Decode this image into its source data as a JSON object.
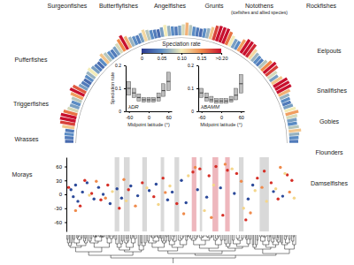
{
  "chart_data": [
    {
      "type": "tree",
      "annotations": [
        "Surgeonfishes",
        "Butterflyfishes",
        "Angelfishes",
        "Grunts",
        "Notothens",
        "(icefishes and allied species)",
        "Rockfishes",
        "Eelpouts",
        "Snailfishes",
        "Gobies",
        "Flounders",
        "Damselfishes",
        "Pufferfishes",
        "Triggerfishes",
        "Wrasses",
        "Morays"
      ],
      "tip_rates": [
        0.03,
        0.04,
        0.05,
        0.04,
        0.12,
        0.18,
        0.22,
        0.2,
        0.16,
        0.09,
        0.06,
        0.05,
        0.08,
        0.14,
        0.21,
        0.17,
        0.06,
        0.04,
        0.03,
        0.05,
        0.07,
        0.1,
        0.06,
        0.04,
        0.03,
        0.05,
        0.12,
        0.08,
        0.05,
        0.04,
        0.06,
        0.09,
        0.15,
        0.2,
        0.13,
        0.07,
        0.05,
        0.04,
        0.06,
        0.11,
        0.08,
        0.05,
        0.04,
        0.03,
        0.06,
        0.1,
        0.07,
        0.05,
        0.04,
        0.06,
        0.09,
        0.13,
        0.08,
        0.05,
        0.04,
        0.03,
        0.05,
        0.07,
        0.12,
        0.18,
        0.22,
        0.25,
        0.21,
        0.16,
        0.1,
        0.06,
        0.05,
        0.14,
        0.2,
        0.24,
        0.19,
        0.11,
        0.07,
        0.05,
        0.04,
        0.08,
        0.15,
        0.22,
        0.18,
        0.09,
        0.06,
        0.12,
        0.21,
        0.26,
        0.2,
        0.13,
        0.07,
        0.05,
        0.04,
        0.06,
        0.1,
        0.14,
        0.09,
        0.06,
        0.05,
        0.08,
        0.12,
        0.07,
        0.05,
        0.04
      ],
      "colorbar": {
        "title": "Speciation rate",
        "lim": [
          0,
          0.2
        ],
        "ticks": [
          0,
          0.05,
          {
            "value": 0.1,
            "label": "0.10"
          },
          0.15,
          {
            "value": 0.2,
            "label": ">0.20"
          }
        ]
      }
    },
    {
      "type": "box",
      "title": "λDR",
      "ylabel": "Speciation rate",
      "xlabel": "Midpoint latitude (°)",
      "x": [
        -60,
        -45,
        -30,
        -15,
        0,
        15,
        30,
        45,
        60
      ],
      "values": [
        0.1,
        0.08,
        0.06,
        0.05,
        0.05,
        0.05,
        0.06,
        0.09,
        0.13
      ],
      "low": [
        0.07,
        0.06,
        0.045,
        0.04,
        0.04,
        0.04,
        0.045,
        0.065,
        0.09
      ],
      "high": [
        0.13,
        0.1,
        0.075,
        0.06,
        0.06,
        0.06,
        0.08,
        0.12,
        0.17
      ],
      "xlim": [
        -70,
        70
      ],
      "xticks": [
        -60,
        0,
        60
      ],
      "ylim": [
        0,
        0.2
      ],
      "yticks": [
        0,
        0.1,
        0.2
      ]
    },
    {
      "type": "box",
      "title": "λBAMM",
      "xlabel": "Midpoint latitude (°)",
      "x": [
        -60,
        -45,
        -30,
        -15,
        0,
        15,
        30,
        45,
        60
      ],
      "values": [
        0.08,
        0.06,
        0.05,
        0.045,
        0.045,
        0.045,
        0.05,
        0.07,
        0.12
      ],
      "low": [
        0.06,
        0.045,
        0.04,
        0.035,
        0.035,
        0.035,
        0.04,
        0.05,
        0.08
      ],
      "high": [
        0.1,
        0.08,
        0.065,
        0.055,
        0.055,
        0.055,
        0.065,
        0.1,
        0.16
      ],
      "xlim": [
        -70,
        70
      ],
      "xticks": [
        -60,
        0,
        60
      ],
      "ylim": [
        0,
        0.2
      ],
      "yticks": [
        0,
        0.1,
        0.2
      ]
    },
    {
      "type": "scatter",
      "xlim": [
        0,
        100
      ],
      "ylim": [
        -80,
        80
      ],
      "yticks": [
        -60,
        -30,
        0,
        30,
        60
      ],
      "tick_labels": "y",
      "bands": [
        {
          "x0": 21,
          "x1": 23,
          "color": "#cfcfcf"
        },
        {
          "x0": 25,
          "x1": 27.5,
          "color": "#cfcfcf"
        },
        {
          "x0": 33,
          "x1": 35,
          "color": "#cfcfcf"
        },
        {
          "x0": 41,
          "x1": 42.5,
          "color": "#cfcfcf"
        },
        {
          "x0": 47,
          "x1": 49,
          "color": "#cfcfcf"
        },
        {
          "x0": 54.5,
          "x1": 56.5,
          "color": "#eaa5ad"
        },
        {
          "x0": 58,
          "x1": 59,
          "color": "#cfcfcf"
        },
        {
          "x0": 63.5,
          "x1": 66,
          "color": "#eaa5ad"
        },
        {
          "x0": 69,
          "x1": 71,
          "color": "#eaa5ad"
        },
        {
          "x0": 75,
          "x1": 77,
          "color": "#cfcfcf"
        },
        {
          "x0": 84,
          "x1": 88,
          "color": "#cfcfcf"
        }
      ],
      "series": [
        {
          "color": "#2c4a9a",
          "x": [
            2,
            3,
            4,
            5,
            7,
            9,
            12,
            14,
            16,
            19,
            22,
            24,
            28,
            31,
            36,
            39,
            44,
            46,
            50,
            52,
            57,
            61,
            67,
            73,
            79,
            81,
            90,
            94
          ],
          "values": [
            10,
            -5,
            20,
            -15,
            5,
            25,
            -10,
            15,
            0,
            -20,
            12,
            -8,
            18,
            -3,
            8,
            22,
            -12,
            5,
            30,
            -18,
            10,
            -6,
            14,
            2,
            -10,
            20,
            6,
            -4
          ]
        },
        {
          "color": "#d62f27",
          "x": [
            1,
            6,
            8,
            11,
            15,
            18,
            23,
            27,
            33,
            38,
            42,
            48,
            55,
            58,
            62,
            65,
            68,
            70,
            74,
            78,
            83,
            86,
            89,
            92,
            96,
            98
          ],
          "values": [
            15,
            -25,
            30,
            2,
            -12,
            20,
            -30,
            10,
            25,
            -5,
            35,
            -20,
            48,
            55,
            40,
            60,
            -45,
            52,
            45,
            -55,
            35,
            50,
            25,
            -10,
            42,
            30
          ]
        },
        {
          "color": "#f4d68a",
          "x": [
            10,
            20,
            26,
            35,
            40,
            45,
            53,
            60,
            64,
            72,
            77,
            82,
            87,
            91,
            95,
            99
          ],
          "values": [
            -2,
            6,
            -14,
            14,
            -22,
            18,
            40,
            -35,
            20,
            55,
            -30,
            8,
            -15,
            12,
            45,
            -8
          ]
        },
        {
          "color": "#ef8a4b",
          "x": [
            4,
            13,
            17,
            25,
            30,
            43,
            51,
            56,
            63,
            69,
            76,
            80,
            85,
            93,
            97
          ],
          "values": [
            -35,
            28,
            -8,
            32,
            -25,
            4,
            -42,
            58,
            -50,
            65,
            28,
            -40,
            15,
            58,
            5
          ]
        }
      ]
    }
  ]
}
